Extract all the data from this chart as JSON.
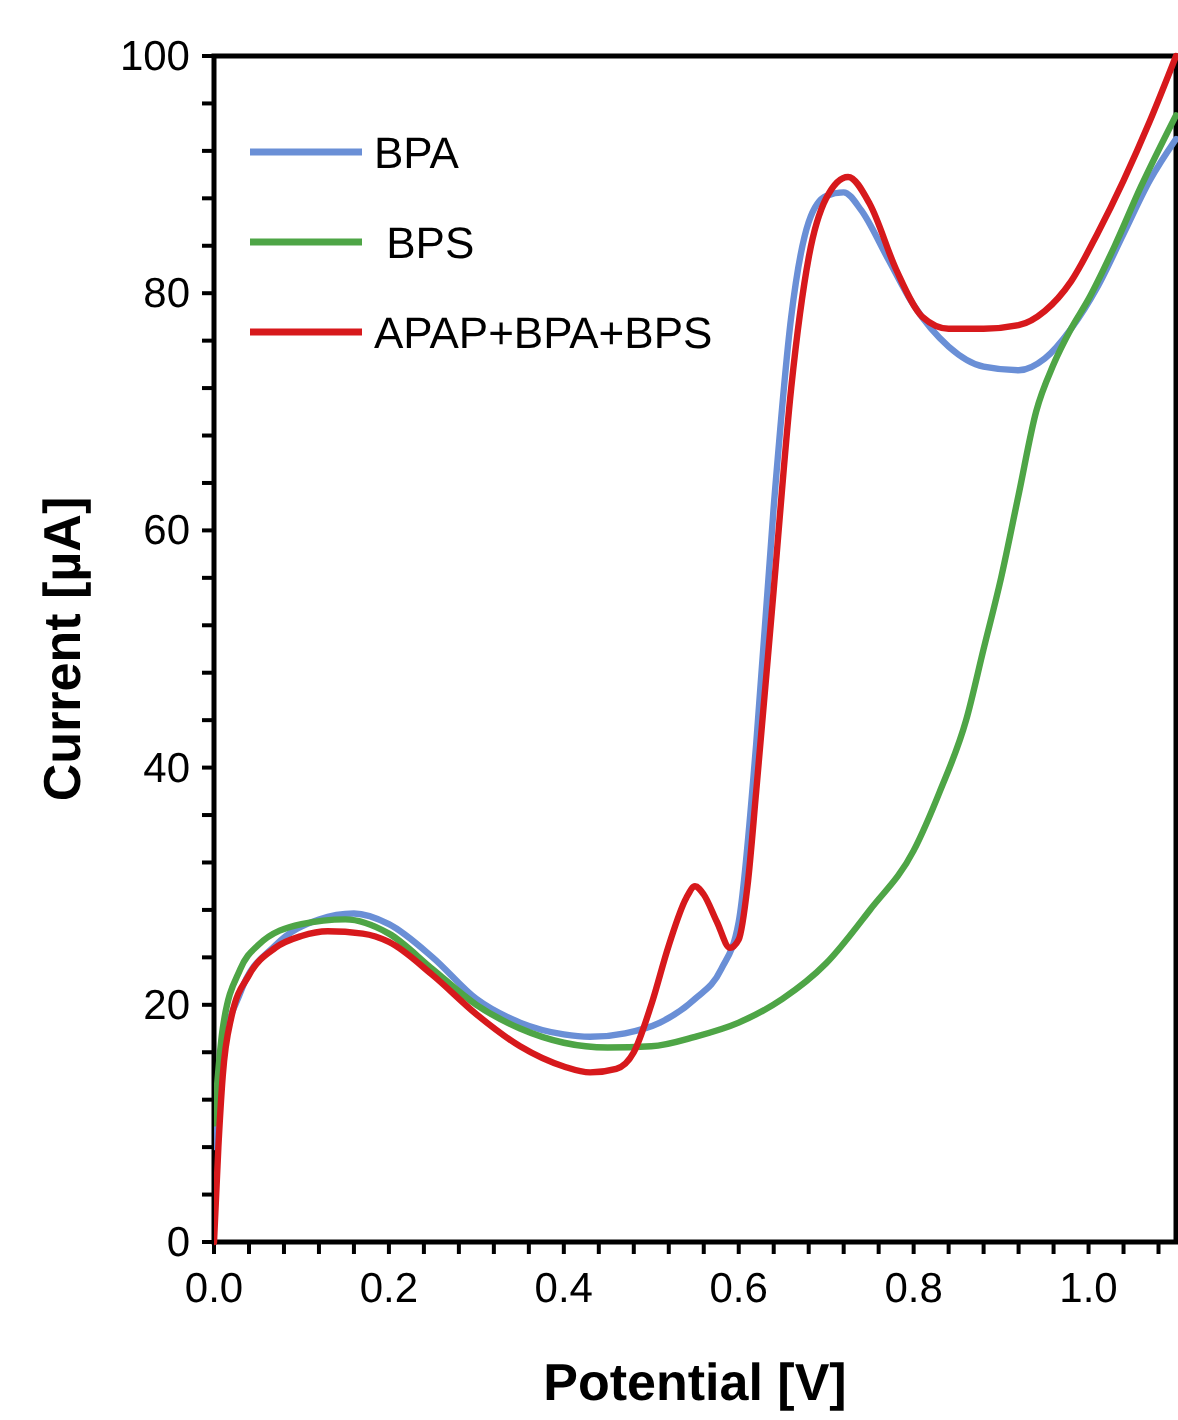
{
  "chart_data": {
    "type": "line",
    "xlabel": "Potential [V]",
    "ylabel": "Current [µA]",
    "xlim": [
      0,
      1.1
    ],
    "ylim": [
      0,
      100
    ],
    "xticks": [
      {
        "value": 0,
        "label": "0.0"
      },
      {
        "value": 0.04,
        "label": null
      },
      {
        "value": 0.08,
        "label": null
      },
      {
        "value": 0.12,
        "label": null
      },
      {
        "value": 0.16,
        "label": null
      },
      {
        "value": 0.2,
        "label": "0.2"
      },
      {
        "value": 0.24,
        "label": null
      },
      {
        "value": 0.28,
        "label": null
      },
      {
        "value": 0.32,
        "label": null
      },
      {
        "value": 0.36,
        "label": null
      },
      {
        "value": 0.4,
        "label": "0.4"
      },
      {
        "value": 0.44,
        "label": null
      },
      {
        "value": 0.48,
        "label": null
      },
      {
        "value": 0.52,
        "label": null
      },
      {
        "value": 0.56,
        "label": null
      },
      {
        "value": 0.6,
        "label": "0.6"
      },
      {
        "value": 0.64,
        "label": null
      },
      {
        "value": 0.68,
        "label": null
      },
      {
        "value": 0.72,
        "label": null
      },
      {
        "value": 0.76,
        "label": null
      },
      {
        "value": 0.8,
        "label": "0.8"
      },
      {
        "value": 0.84,
        "label": null
      },
      {
        "value": 0.88,
        "label": null
      },
      {
        "value": 0.92,
        "label": null
      },
      {
        "value": 0.96,
        "label": null
      },
      {
        "value": 1.0,
        "label": "1.0"
      },
      {
        "value": 1.04,
        "label": null
      },
      {
        "value": 1.08,
        "label": null
      }
    ],
    "yticks": [
      0,
      {
        "value": 4,
        "label": null
      },
      {
        "value": 8,
        "label": null
      },
      {
        "value": 12,
        "label": null
      },
      {
        "value": 16,
        "label": null
      },
      20,
      {
        "value": 24,
        "label": null
      },
      {
        "value": 28,
        "label": null
      },
      {
        "value": 32,
        "label": null
      },
      {
        "value": 36,
        "label": null
      },
      40,
      {
        "value": 44,
        "label": null
      },
      {
        "value": 48,
        "label": null
      },
      {
        "value": 52,
        "label": null
      },
      {
        "value": 56,
        "label": null
      },
      60,
      {
        "value": 64,
        "label": null
      },
      {
        "value": 68,
        "label": null
      },
      {
        "value": 72,
        "label": null
      },
      {
        "value": 76,
        "label": null
      },
      80,
      {
        "value": 84,
        "label": null
      },
      {
        "value": 88,
        "label": null
      },
      {
        "value": 92,
        "label": null
      },
      {
        "value": 96,
        "label": null
      },
      100
    ],
    "grid": false,
    "legend": "top left",
    "marker": "none",
    "line_style": "solid",
    "series": [
      {
        "name": "BPA",
        "color": "#6a8fd6",
        "x": [
          0,
          0.01,
          0.03,
          0.07,
          0.12,
          0.16,
          0.2,
          0.25,
          0.3,
          0.35,
          0.4,
          0.43,
          0.47,
          0.51,
          0.55,
          0.58,
          0.6,
          0.62,
          0.64,
          0.66,
          0.68,
          0.7,
          0.72,
          0.74,
          0.77,
          0.8,
          0.84,
          0.88,
          0.92,
          0.95,
          0.98,
          1.01,
          1.04,
          1.07,
          1.1
        ],
        "values": [
          8,
          16,
          21,
          25,
          27.2,
          27.7,
          26.8,
          24,
          20.5,
          18.5,
          17.5,
          17.3,
          17.6,
          18.5,
          20.5,
          23,
          27,
          42,
          62,
          78,
          86,
          88.2,
          88.5,
          87,
          83,
          79,
          75.5,
          73.8,
          73.5,
          74.5,
          77,
          80.5,
          85,
          89.5,
          93
        ]
      },
      {
        "name": " BPS",
        "color": "#4ea546",
        "x": [
          0,
          0.01,
          0.03,
          0.05,
          0.1,
          0.15,
          0.2,
          0.25,
          0.3,
          0.35,
          0.4,
          0.45,
          0.5,
          0.55,
          0.6,
          0.65,
          0.7,
          0.75,
          0.8,
          0.83,
          0.86,
          0.88,
          0.9,
          0.92,
          0.94,
          0.96,
          0.98,
          1.0,
          1.03,
          1.06,
          1.1
        ],
        "values": [
          10,
          18,
          23,
          25,
          26.8,
          27.2,
          26,
          23,
          20,
          18,
          16.8,
          16.4,
          16.5,
          17.3,
          18.5,
          20.5,
          23.5,
          28,
          33,
          38,
          44,
          50,
          56,
          63,
          70,
          74,
          77,
          79.5,
          84,
          89,
          95
        ]
      },
      {
        "name": "APAP+BPA+BPS",
        "color": "#d7191c",
        "x": [
          0,
          0.005,
          0.01,
          0.02,
          0.04,
          0.07,
          0.1,
          0.13,
          0.17,
          0.2,
          0.25,
          0.3,
          0.35,
          0.4,
          0.43,
          0.46,
          0.48,
          0.5,
          0.52,
          0.54,
          0.55,
          0.56,
          0.575,
          0.59,
          0.6,
          0.61,
          0.62,
          0.64,
          0.66,
          0.68,
          0.7,
          0.725,
          0.75,
          0.78,
          0.81,
          0.84,
          0.88,
          0.92,
          0.95,
          0.98,
          1.01,
          1.04,
          1.07,
          1.1
        ],
        "values": [
          0,
          8,
          14,
          19,
          22.5,
          24.8,
          25.8,
          26.2,
          26,
          25.3,
          22.5,
          19.2,
          16.5,
          14.8,
          14.3,
          14.6,
          16,
          20,
          25,
          29,
          30,
          29.3,
          27,
          24.8,
          25.5,
          30,
          38,
          55,
          72,
          83,
          88,
          89.8,
          87.5,
          82,
          78,
          77,
          77,
          77.3,
          78.5,
          81,
          85,
          89.5,
          94.5,
          100
        ]
      }
    ]
  }
}
